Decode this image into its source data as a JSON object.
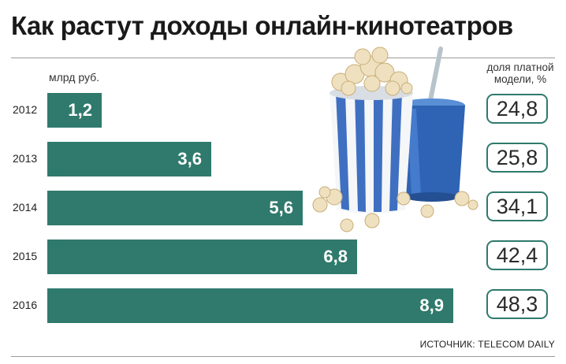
{
  "title": "Как растут доходы онлайн-кинотеатров",
  "unit_label": "млрд руб.",
  "share_label": "доля платной модели, %",
  "source": "ИСТОЧНИК: TELECOM DAILY",
  "colors": {
    "bar": "#2f7a6c",
    "box_border": "#2f7a6c",
    "text": "#1a1a1a"
  },
  "illustration": {
    "icons": [
      "popcorn-bucket-icon",
      "soda-cup-icon",
      "popcorn-kernels-icon"
    ]
  },
  "chart_data": {
    "type": "bar",
    "orientation": "horizontal",
    "categories": [
      "2012",
      "2013",
      "2014",
      "2015",
      "2016"
    ],
    "series": [
      {
        "name": "млрд руб.",
        "values": [
          1.2,
          3.6,
          5.6,
          6.8,
          8.9
        ],
        "labels": [
          "1,2",
          "3,6",
          "5,6",
          "6,8",
          "8,9"
        ]
      },
      {
        "name": "доля платной модели, %",
        "values": [
          24.8,
          25.8,
          34.1,
          42.4,
          48.3
        ],
        "labels": [
          "24,8",
          "25,8",
          "34,1",
          "42,4",
          "48,3"
        ]
      }
    ],
    "title": "Как растут доходы онлайн-кинотеатров",
    "xlim": [
      0,
      8.9
    ]
  }
}
